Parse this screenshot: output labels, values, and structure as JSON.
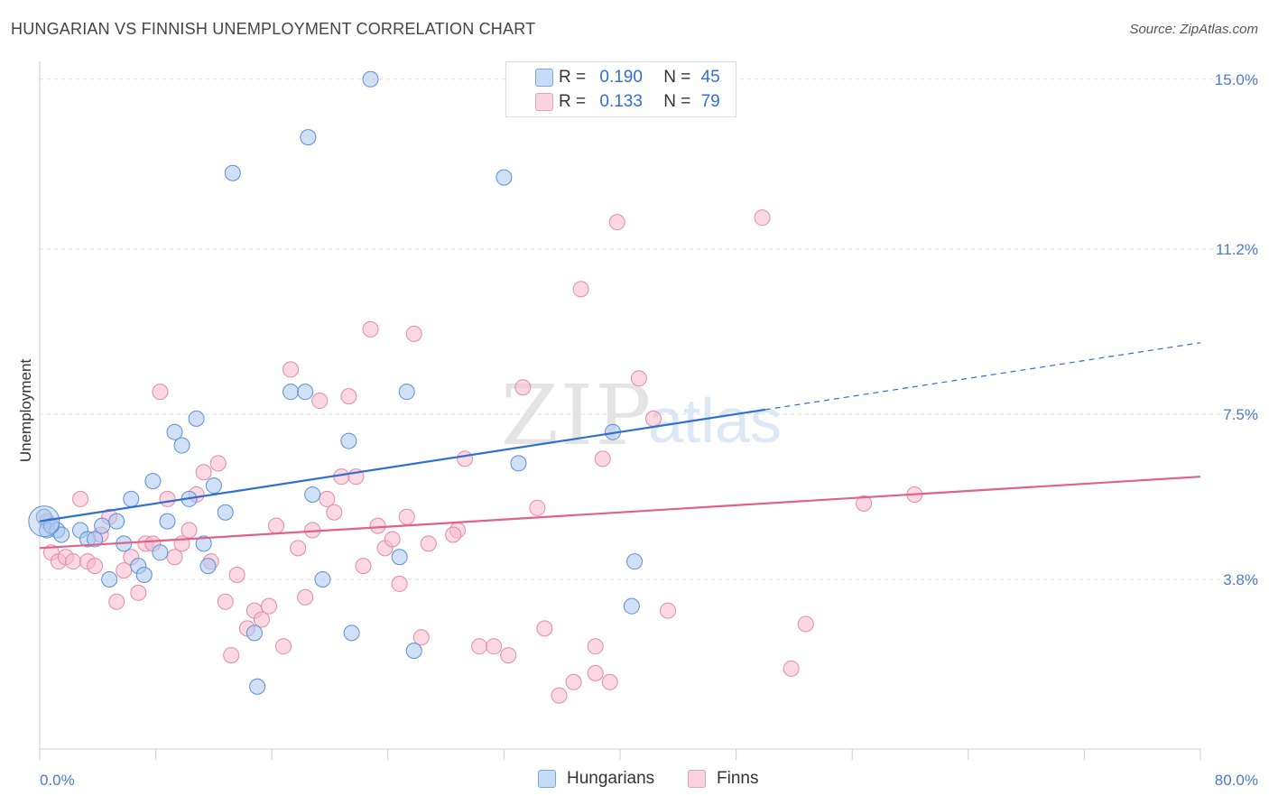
{
  "header": {
    "title": "HUNGARIAN VS FINNISH UNEMPLOYMENT CORRELATION CHART",
    "source": "Source: ZipAtlas.com"
  },
  "watermark": {
    "zip": "ZIP",
    "atlas": "atlas"
  },
  "legend": {
    "r_label": "R =",
    "n_label": "N =",
    "rows": [
      {
        "r": "0.190",
        "n": "45",
        "color": "#a9c8f0"
      },
      {
        "r": "0.133",
        "n": "79",
        "color": "#f7b8cb"
      }
    ]
  },
  "bottom_legend": [
    "Hungarians",
    "Finns"
  ],
  "colors": {
    "blue_fill": "#a9c8f0",
    "blue_stroke": "#5b8fd6",
    "blue_line": "#2f6fcf",
    "pink_fill": "#f7b8cb",
    "pink_stroke": "#e58aa6",
    "pink_line": "#e0608e",
    "tick_text": "#4a7cc9",
    "grid": "#dddddd"
  },
  "chart_data": {
    "type": "scatter",
    "title": "HUNGARIAN VS FINNISH UNEMPLOYMENT CORRELATION CHART",
    "xlabel": "",
    "ylabel": "Unemployment",
    "xlim": [
      0,
      80
    ],
    "ylim": [
      0,
      15.4
    ],
    "x_tick_labels": [
      "0.0%",
      "80.0%"
    ],
    "y_ticks": [
      3.8,
      7.5,
      11.2,
      15.0
    ],
    "y_tick_labels": [
      "3.8%",
      "7.5%",
      "11.2%",
      "15.0%"
    ],
    "grid": "horizontal dashed",
    "legend_position": "top-center",
    "series": [
      {
        "name": "Hungarians",
        "r": 0.19,
        "n": 45,
        "trend": {
          "x": [
            0,
            50
          ],
          "y": [
            5.1,
            7.6
          ],
          "dashed_to": [
            80,
            9.1
          ]
        },
        "points": [
          [
            0.3,
            5.2
          ],
          [
            0.5,
            4.9
          ],
          [
            1.2,
            4.9
          ],
          [
            1.5,
            4.8
          ],
          [
            2.8,
            4.9
          ],
          [
            3.3,
            4.7
          ],
          [
            3.8,
            4.7
          ],
          [
            4.3,
            5.0
          ],
          [
            4.8,
            3.8
          ],
          [
            5.3,
            5.1
          ],
          [
            5.8,
            4.6
          ],
          [
            6.3,
            5.6
          ],
          [
            6.8,
            4.1
          ],
          [
            7.2,
            3.9
          ],
          [
            7.8,
            6.0
          ],
          [
            8.3,
            4.4
          ],
          [
            8.8,
            5.1
          ],
          [
            9.3,
            7.1
          ],
          [
            9.8,
            6.8
          ],
          [
            10.3,
            5.6
          ],
          [
            10.8,
            7.4
          ],
          [
            11.3,
            4.6
          ],
          [
            11.6,
            4.1
          ],
          [
            12.0,
            5.9
          ],
          [
            12.8,
            5.3
          ],
          [
            13.3,
            12.9
          ],
          [
            14.8,
            2.6
          ],
          [
            15.0,
            1.4
          ],
          [
            17.3,
            8.0
          ],
          [
            18.3,
            8.0
          ],
          [
            18.5,
            13.7
          ],
          [
            18.8,
            5.7
          ],
          [
            19.5,
            3.8
          ],
          [
            21.3,
            6.9
          ],
          [
            21.5,
            2.6
          ],
          [
            22.8,
            15.0
          ],
          [
            24.8,
            4.3
          ],
          [
            25.3,
            8.0
          ],
          [
            25.8,
            2.2
          ],
          [
            32.0,
            12.8
          ],
          [
            33.0,
            6.4
          ],
          [
            39.5,
            7.1
          ],
          [
            40.8,
            3.2
          ],
          [
            41.0,
            4.2
          ],
          [
            0.8,
            5.0
          ]
        ]
      },
      {
        "name": "Finns",
        "r": 0.133,
        "n": 79,
        "trend": {
          "x": [
            0,
            80
          ],
          "y": [
            4.5,
            6.1
          ]
        },
        "points": [
          [
            0.5,
            5.1
          ],
          [
            0.8,
            4.4
          ],
          [
            1.3,
            4.2
          ],
          [
            1.8,
            4.3
          ],
          [
            2.3,
            4.2
          ],
          [
            2.8,
            5.6
          ],
          [
            3.3,
            4.2
          ],
          [
            3.8,
            4.1
          ],
          [
            4.2,
            4.8
          ],
          [
            4.8,
            5.2
          ],
          [
            5.3,
            3.3
          ],
          [
            5.8,
            4.0
          ],
          [
            6.3,
            4.3
          ],
          [
            6.8,
            3.5
          ],
          [
            7.3,
            4.6
          ],
          [
            7.8,
            4.6
          ],
          [
            8.3,
            8.0
          ],
          [
            8.8,
            5.6
          ],
          [
            9.3,
            4.3
          ],
          [
            9.8,
            4.6
          ],
          [
            10.3,
            4.9
          ],
          [
            10.8,
            5.7
          ],
          [
            11.3,
            6.2
          ],
          [
            11.8,
            4.2
          ],
          [
            12.3,
            6.4
          ],
          [
            12.8,
            3.3
          ],
          [
            13.2,
            2.1
          ],
          [
            13.6,
            3.9
          ],
          [
            14.3,
            2.7
          ],
          [
            14.8,
            3.1
          ],
          [
            15.3,
            2.9
          ],
          [
            15.8,
            3.2
          ],
          [
            16.3,
            5.0
          ],
          [
            16.8,
            2.3
          ],
          [
            17.3,
            8.5
          ],
          [
            17.8,
            4.5
          ],
          [
            18.3,
            3.4
          ],
          [
            18.8,
            4.9
          ],
          [
            19.3,
            7.8
          ],
          [
            19.8,
            5.6
          ],
          [
            20.3,
            5.3
          ],
          [
            20.8,
            6.1
          ],
          [
            21.3,
            7.9
          ],
          [
            21.8,
            6.1
          ],
          [
            22.3,
            4.1
          ],
          [
            22.8,
            9.4
          ],
          [
            23.3,
            5.0
          ],
          [
            23.8,
            4.5
          ],
          [
            24.3,
            4.7
          ],
          [
            24.8,
            3.7
          ],
          [
            25.3,
            5.2
          ],
          [
            25.8,
            9.3
          ],
          [
            26.3,
            2.5
          ],
          [
            26.8,
            4.6
          ],
          [
            28.8,
            4.9
          ],
          [
            29.3,
            6.5
          ],
          [
            30.3,
            2.3
          ],
          [
            31.3,
            2.3
          ],
          [
            32.3,
            2.1
          ],
          [
            33.3,
            8.1
          ],
          [
            34.3,
            5.4
          ],
          [
            34.8,
            2.7
          ],
          [
            35.8,
            1.2
          ],
          [
            37.3,
            10.3
          ],
          [
            38.3,
            2.3
          ],
          [
            38.8,
            6.5
          ],
          [
            38.3,
            1.7
          ],
          [
            39.3,
            1.5
          ],
          [
            39.8,
            11.8
          ],
          [
            41.3,
            8.3
          ],
          [
            42.3,
            7.4
          ],
          [
            43.3,
            3.1
          ],
          [
            49.8,
            11.9
          ],
          [
            51.8,
            1.8
          ],
          [
            52.8,
            2.8
          ],
          [
            56.8,
            5.5
          ],
          [
            60.3,
            5.7
          ],
          [
            36.8,
            1.5
          ],
          [
            28.5,
            4.8
          ]
        ]
      }
    ]
  }
}
